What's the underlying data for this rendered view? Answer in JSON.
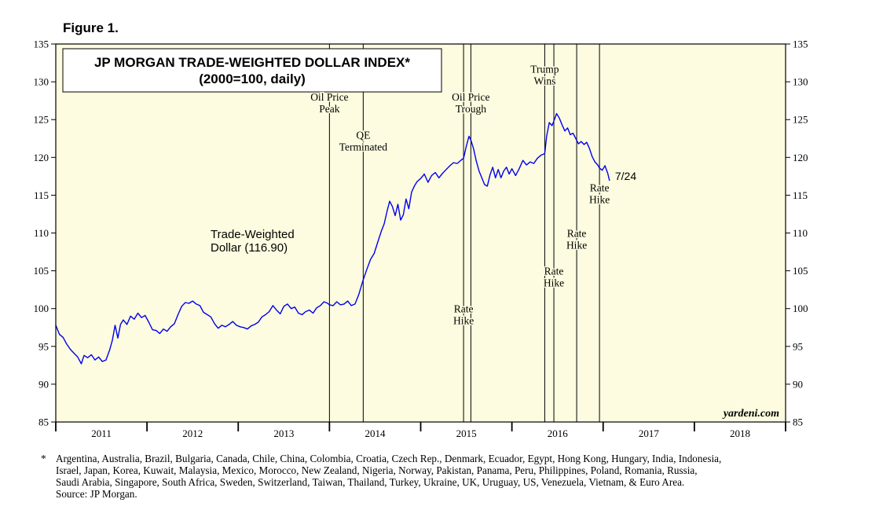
{
  "figure_label": "Figure 1.",
  "colors": {
    "plot_bg": "#fdfce0",
    "line": "#0000ee",
    "axis": "#000000"
  },
  "chart_data": {
    "type": "line",
    "title": "JP MORGAN TRADE-WEIGHTED DOLLAR INDEX*",
    "subtitle": "(2000=100, daily)",
    "series_label": [
      "Trade-Weighted",
      "Dollar (116.90)"
    ],
    "end_label": "7/24",
    "watermark": "yardeni.com",
    "x_range": [
      2011.0,
      2019.0
    ],
    "ylim": [
      85,
      135
    ],
    "y_ticks": [
      85,
      90,
      95,
      100,
      105,
      110,
      115,
      120,
      125,
      130,
      135
    ],
    "x_tick_labels": [
      "2011",
      "2012",
      "2013",
      "2014",
      "2015",
      "2016",
      "2017",
      "2018"
    ],
    "vertical_lines": [
      {
        "x": 2014.0,
        "label": [
          "Oil Price",
          "Peak"
        ],
        "label_y": 127.5
      },
      {
        "x": 2014.37,
        "label": [
          "QE",
          "Terminated"
        ],
        "label_y": 122.5
      },
      {
        "x": 2015.47,
        "label": [
          "Rate",
          "Hike"
        ],
        "label_y": 99.5
      },
      {
        "x": 2015.55,
        "label": [
          "Oil Price",
          "Trough"
        ],
        "label_y": 127.5
      },
      {
        "x": 2016.36,
        "label": [
          "Trump",
          "Wins"
        ],
        "label_y": 131.2
      },
      {
        "x": 2016.46,
        "label": [
          "Rate",
          "Hike"
        ],
        "label_y": 104.5
      },
      {
        "x": 2016.71,
        "label": [
          "Rate",
          "Hike"
        ],
        "label_y": 109.5
      },
      {
        "x": 2016.96,
        "label": [
          "Rate",
          "Hike"
        ],
        "label_y": 115.5
      }
    ],
    "series": [
      {
        "name": "Trade-Weighted Dollar",
        "points": [
          [
            2011.0,
            97.8
          ],
          [
            2011.04,
            96.6
          ],
          [
            2011.08,
            96.2
          ],
          [
            2011.12,
            95.3
          ],
          [
            2011.16,
            94.6
          ],
          [
            2011.2,
            94.1
          ],
          [
            2011.24,
            93.6
          ],
          [
            2011.28,
            92.7
          ],
          [
            2011.31,
            93.8
          ],
          [
            2011.35,
            93.5
          ],
          [
            2011.39,
            93.9
          ],
          [
            2011.43,
            93.2
          ],
          [
            2011.47,
            93.6
          ],
          [
            2011.51,
            93.0
          ],
          [
            2011.55,
            93.2
          ],
          [
            2011.59,
            94.5
          ],
          [
            2011.62,
            95.8
          ],
          [
            2011.65,
            97.8
          ],
          [
            2011.68,
            96.1
          ],
          [
            2011.71,
            97.9
          ],
          [
            2011.74,
            98.5
          ],
          [
            2011.78,
            97.9
          ],
          [
            2011.82,
            99.0
          ],
          [
            2011.86,
            98.6
          ],
          [
            2011.9,
            99.4
          ],
          [
            2011.94,
            98.8
          ],
          [
            2011.98,
            99.1
          ],
          [
            2012.02,
            98.2
          ],
          [
            2012.06,
            97.2
          ],
          [
            2012.1,
            97.1
          ],
          [
            2012.14,
            96.7
          ],
          [
            2012.18,
            97.3
          ],
          [
            2012.22,
            97.0
          ],
          [
            2012.26,
            97.6
          ],
          [
            2012.3,
            98.0
          ],
          [
            2012.34,
            99.2
          ],
          [
            2012.38,
            100.3
          ],
          [
            2012.42,
            100.8
          ],
          [
            2012.46,
            100.7
          ],
          [
            2012.5,
            101.0
          ],
          [
            2012.54,
            100.6
          ],
          [
            2012.58,
            100.4
          ],
          [
            2012.62,
            99.5
          ],
          [
            2012.66,
            99.2
          ],
          [
            2012.7,
            98.9
          ],
          [
            2012.74,
            98.0
          ],
          [
            2012.78,
            97.4
          ],
          [
            2012.82,
            97.8
          ],
          [
            2012.86,
            97.6
          ],
          [
            2012.9,
            97.9
          ],
          [
            2012.94,
            98.3
          ],
          [
            2012.98,
            97.8
          ],
          [
            2013.02,
            97.6
          ],
          [
            2013.06,
            97.5
          ],
          [
            2013.1,
            97.3
          ],
          [
            2013.14,
            97.7
          ],
          [
            2013.18,
            97.9
          ],
          [
            2013.22,
            98.2
          ],
          [
            2013.26,
            98.9
          ],
          [
            2013.3,
            99.2
          ],
          [
            2013.34,
            99.6
          ],
          [
            2013.38,
            100.4
          ],
          [
            2013.42,
            99.8
          ],
          [
            2013.46,
            99.3
          ],
          [
            2013.5,
            100.3
          ],
          [
            2013.54,
            100.6
          ],
          [
            2013.58,
            100.0
          ],
          [
            2013.62,
            100.2
          ],
          [
            2013.66,
            99.4
          ],
          [
            2013.7,
            99.2
          ],
          [
            2013.74,
            99.6
          ],
          [
            2013.78,
            99.8
          ],
          [
            2013.82,
            99.4
          ],
          [
            2013.86,
            100.1
          ],
          [
            2013.9,
            100.4
          ],
          [
            2013.94,
            100.9
          ],
          [
            2013.98,
            100.7
          ],
          [
            2014.0,
            100.5
          ],
          [
            2014.04,
            100.4
          ],
          [
            2014.08,
            100.9
          ],
          [
            2014.12,
            100.5
          ],
          [
            2014.16,
            100.6
          ],
          [
            2014.2,
            101.0
          ],
          [
            2014.24,
            100.4
          ],
          [
            2014.28,
            100.6
          ],
          [
            2014.32,
            101.8
          ],
          [
            2014.37,
            103.8
          ],
          [
            2014.41,
            105.2
          ],
          [
            2014.45,
            106.5
          ],
          [
            2014.49,
            107.3
          ],
          [
            2014.53,
            108.8
          ],
          [
            2014.57,
            110.3
          ],
          [
            2014.6,
            111.2
          ],
          [
            2014.63,
            112.8
          ],
          [
            2014.66,
            114.2
          ],
          [
            2014.69,
            113.5
          ],
          [
            2014.72,
            112.3
          ],
          [
            2014.75,
            113.8
          ],
          [
            2014.78,
            111.7
          ],
          [
            2014.81,
            112.4
          ],
          [
            2014.84,
            114.5
          ],
          [
            2014.87,
            113.2
          ],
          [
            2014.9,
            115.4
          ],
          [
            2014.93,
            116.2
          ],
          [
            2014.96,
            116.8
          ],
          [
            2015.0,
            117.2
          ],
          [
            2015.04,
            117.8
          ],
          [
            2015.08,
            116.7
          ],
          [
            2015.12,
            117.6
          ],
          [
            2015.16,
            118.0
          ],
          [
            2015.2,
            117.3
          ],
          [
            2015.24,
            117.9
          ],
          [
            2015.28,
            118.4
          ],
          [
            2015.32,
            118.9
          ],
          [
            2015.36,
            119.3
          ],
          [
            2015.4,
            119.2
          ],
          [
            2015.44,
            119.6
          ],
          [
            2015.47,
            119.9
          ],
          [
            2015.5,
            121.5
          ],
          [
            2015.53,
            122.8
          ],
          [
            2015.55,
            122.3
          ],
          [
            2015.58,
            121.1
          ],
          [
            2015.61,
            119.5
          ],
          [
            2015.64,
            118.2
          ],
          [
            2015.67,
            117.3
          ],
          [
            2015.7,
            116.4
          ],
          [
            2015.73,
            116.2
          ],
          [
            2015.76,
            117.7
          ],
          [
            2015.79,
            118.7
          ],
          [
            2015.82,
            117.3
          ],
          [
            2015.85,
            118.4
          ],
          [
            2015.88,
            117.3
          ],
          [
            2015.91,
            118.2
          ],
          [
            2015.94,
            118.7
          ],
          [
            2015.97,
            117.8
          ],
          [
            2016.0,
            118.5
          ],
          [
            2016.04,
            117.6
          ],
          [
            2016.08,
            118.5
          ],
          [
            2016.12,
            119.6
          ],
          [
            2016.16,
            119.0
          ],
          [
            2016.2,
            119.4
          ],
          [
            2016.24,
            119.2
          ],
          [
            2016.28,
            119.9
          ],
          [
            2016.32,
            120.3
          ],
          [
            2016.36,
            120.5
          ],
          [
            2016.38,
            122.8
          ],
          [
            2016.41,
            124.6
          ],
          [
            2016.44,
            124.2
          ],
          [
            2016.46,
            124.8
          ],
          [
            2016.49,
            125.8
          ],
          [
            2016.52,
            125.2
          ],
          [
            2016.55,
            124.3
          ],
          [
            2016.58,
            123.5
          ],
          [
            2016.61,
            123.9
          ],
          [
            2016.64,
            123.0
          ],
          [
            2016.67,
            123.2
          ],
          [
            2016.7,
            122.5
          ],
          [
            2016.73,
            121.8
          ],
          [
            2016.76,
            122.1
          ],
          [
            2016.79,
            121.7
          ],
          [
            2016.82,
            122.0
          ],
          [
            2016.85,
            121.2
          ],
          [
            2016.88,
            120.1
          ],
          [
            2016.91,
            119.4
          ],
          [
            2016.94,
            119.0
          ],
          [
            2016.96,
            118.6
          ],
          [
            2016.99,
            118.3
          ],
          [
            2017.02,
            118.9
          ],
          [
            2017.05,
            117.9
          ],
          [
            2017.07,
            116.9
          ]
        ]
      }
    ]
  },
  "footnote": {
    "marker": "*",
    "lines": [
      "Argentina, Australia, Brazil, Bulgaria, Canada, Chile, China, Colombia, Croatia, Czech Rep., Denmark, Ecuador, Egypt, Hong Kong, Hungary, India, Indonesia,",
      "Israel, Japan, Korea, Kuwait, Malaysia, Mexico, Morocco, New Zealand, Nigeria, Norway, Pakistan, Panama, Peru, Philippines, Poland, Romania, Russia,",
      "Saudi Arabia, Singapore, South Africa, Sweden, Switzerland, Taiwan, Thailand, Turkey, Ukraine, UK, Uruguay, US, Venezuela, Vietnam, & Euro Area."
    ],
    "source": "Source: JP Morgan."
  }
}
